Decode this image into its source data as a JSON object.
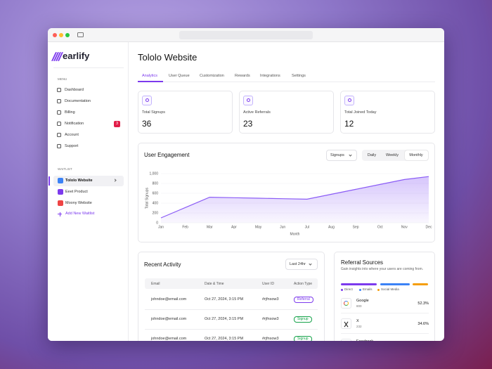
{
  "sidebar": {
    "brand": "earlify",
    "menu_heading": "MENU",
    "menu": [
      "Dashboard",
      "Documentation",
      "Billing",
      "Notification",
      "Account",
      "Support"
    ],
    "notification_badge": 3,
    "waitlist_heading": "WAITLIST",
    "waitlists": [
      {
        "name": "Tololo Website",
        "color": "#3b82f6"
      },
      {
        "name": "Eeet Product",
        "color": "#7c3aed"
      },
      {
        "name": "Moony Website",
        "color": "#ef4444"
      }
    ],
    "add_waitlist": "Add New Waitlist"
  },
  "header": {
    "title": "Tololo Website",
    "tabs": [
      "Analytics",
      "User Queue",
      "Customization",
      "Rewards",
      "Integrations",
      "Settings"
    ]
  },
  "stats": [
    {
      "label": "Total Signups",
      "value": 36
    },
    {
      "label": "Active Referrals",
      "value": 23
    },
    {
      "label": "Total Joined Today",
      "value": 12
    }
  ],
  "engagement": {
    "title": "User Engagement",
    "dropdown": "Signups",
    "periods": [
      "Daily",
      "Weekly",
      "Monthly"
    ],
    "chart": {
      "type": "line",
      "y_label": "Total Signups",
      "x_label": "Month",
      "categories": [
        "Jan",
        "Feb",
        "Mar",
        "Apr",
        "May",
        "Jun",
        "Jul",
        "Aug",
        "Sep",
        "Oct",
        "Nov",
        "Dec"
      ],
      "values": [
        100,
        310,
        520,
        510,
        500,
        490,
        480,
        580,
        680,
        780,
        880,
        940
      ],
      "ylim": [
        0,
        1000
      ],
      "yticks": [
        0,
        200,
        400,
        600,
        800,
        {
          "value": 1000,
          "label": "1,000"
        }
      ],
      "color": "#8b5cf6",
      "grid": true
    }
  },
  "activity": {
    "title": "Recent Activity",
    "filter": "Last 24hr",
    "columns": [
      "Email",
      "Date & Time",
      "User ID",
      "Action Type"
    ],
    "rows": [
      [
        "johndoe@email.com",
        "Oct 27, 2024, 3:15 PM",
        "#rjfnsow3",
        "Referral"
      ],
      [
        "johndoe@email.com",
        "Oct 27, 2024, 3:15 PM",
        "#rjfnsow3",
        "Signup"
      ],
      [
        "johndoe@email.com",
        "Oct 27, 2024, 3:15 PM",
        "#rjfnsow3",
        "Signup"
      ]
    ],
    "action_colors": {
      "Referral": "#7c3aed",
      "Signup": "#16a34a"
    }
  },
  "referrals": {
    "title": "Referral Sources",
    "subtitle": "Gain insights into where your users are coming from.",
    "legend": [
      {
        "name": "Direct",
        "color": "#7c3aed"
      },
      {
        "name": "Emails",
        "color": "#3b82f6"
      },
      {
        "name": "Social Media",
        "color": "#f59e0b"
      }
    ],
    "sources": [
      {
        "name": "Google",
        "count": 800,
        "share": "52.3%"
      },
      {
        "name": "X",
        "count": 232,
        "share": "34.6%"
      },
      {
        "name": "Facebook"
      }
    ]
  }
}
